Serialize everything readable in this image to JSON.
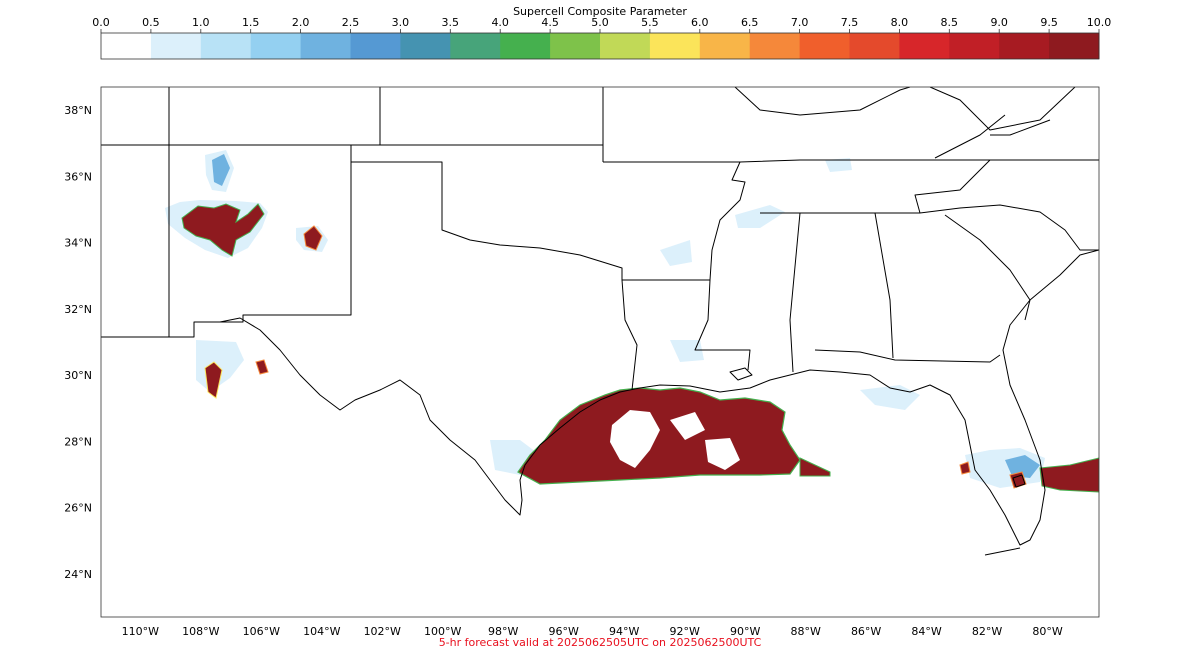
{
  "colorbar": {
    "title": "Supercell Composite Parameter",
    "ticks": [
      "0.0",
      "0.5",
      "1.0",
      "1.5",
      "2.0",
      "2.5",
      "3.0",
      "3.5",
      "4.0",
      "4.5",
      "5.0",
      "5.5",
      "6.0",
      "6.5",
      "7.0",
      "7.5",
      "8.0",
      "8.5",
      "9.0",
      "9.5",
      "10.0"
    ],
    "colors": [
      "#ffffff",
      "#dcf0fb",
      "#b8e2f6",
      "#94d0f1",
      "#6fb2e0",
      "#5599d3",
      "#4593b1",
      "#47a47a",
      "#45b04e",
      "#7ec24a",
      "#c1d957",
      "#fbe45a",
      "#f8b548",
      "#f5883a",
      "#f05f2c",
      "#e44a2c",
      "#d7262a",
      "#c11f26",
      "#a71b22",
      "#8e1a1f"
    ]
  },
  "map": {
    "lon_range": [
      -111.3,
      -78.3
    ],
    "lat_range": [
      22.7,
      38.7
    ],
    "lat_labels": [
      "24°N",
      "26°N",
      "28°N",
      "30°N",
      "32°N",
      "34°N",
      "36°N",
      "38°N"
    ],
    "lon_labels": [
      "110°W",
      "108°W",
      "106°W",
      "104°W",
      "102°W",
      "100°W",
      "98°W",
      "96°W",
      "94°W",
      "92°W",
      "90°W",
      "88°W",
      "86°W",
      "84°W",
      "82°W",
      "80°W"
    ],
    "lat_values": [
      24,
      26,
      28,
      30,
      32,
      34,
      36,
      38
    ],
    "lon_values": [
      -110,
      -108,
      -106,
      -104,
      -102,
      -100,
      -98,
      -96,
      -94,
      -92,
      -90,
      -88,
      -86,
      -84,
      -82,
      -80
    ]
  },
  "footer": {
    "text": "5-hr forecast valid at 2025062505UTC on 2025062500UTC",
    "color": "#e8101e"
  }
}
